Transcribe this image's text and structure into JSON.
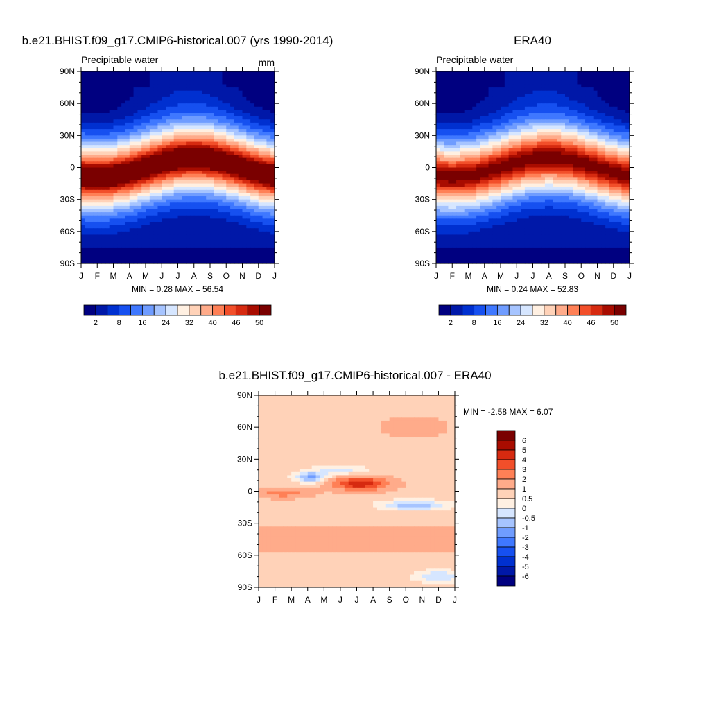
{
  "panels": [
    {
      "id": "model",
      "title": "b.e21.BHIST.f09_g17.CMIP6-historical.007 (yrs 1990-2014)",
      "left_label": "Precipitable water",
      "right_label": "mm",
      "stats": "MIN =   0.28 MAX =   56.54"
    },
    {
      "id": "era",
      "title": "ERA40",
      "left_label": "Precipitable water",
      "right_label": "",
      "stats": "MIN =   0.24 MAX =   52.83"
    },
    {
      "id": "diff",
      "title": "b.e21.BHIST.f09_g17.CMIP6-historical.007 - ERA40",
      "left_label": "",
      "right_label": "",
      "stats": "MIN =  -2.58 MAX =   6.07"
    }
  ],
  "chart_data": [
    {
      "type": "heatmap",
      "title": "b.e21.BHIST.f09_g17.CMIP6-historical.007 (yrs 1990-2014)",
      "left_label": "Precipitable water",
      "units": "mm",
      "x_tick_labels": [
        "J",
        "F",
        "M",
        "A",
        "M",
        "J",
        "J",
        "A",
        "S",
        "O",
        "N",
        "D",
        "J"
      ],
      "y_tick_labels": [
        "90N",
        "60N",
        "30N",
        "0",
        "30S",
        "60S",
        "90S"
      ],
      "ylim": [
        -90,
        90
      ],
      "min": 0.28,
      "max": 56.54,
      "colorbar_levels": [
        2,
        5,
        8,
        12,
        16,
        20,
        24,
        28,
        32,
        36,
        40,
        43,
        46,
        48,
        50
      ],
      "colorbar_labels": [
        "2",
        "8",
        "16",
        "24",
        "32",
        "40",
        "46",
        "50"
      ]
    },
    {
      "type": "heatmap",
      "title": "ERA40",
      "left_label": "Precipitable water",
      "x_tick_labels": [
        "J",
        "F",
        "M",
        "A",
        "M",
        "J",
        "J",
        "A",
        "S",
        "O",
        "N",
        "D",
        "J"
      ],
      "y_tick_labels": [
        "90N",
        "60N",
        "30N",
        "0",
        "30S",
        "60S",
        "90S"
      ],
      "ylim": [
        -90,
        90
      ],
      "min": 0.24,
      "max": 52.83,
      "colorbar_levels": [
        2,
        5,
        8,
        12,
        16,
        20,
        24,
        28,
        32,
        36,
        40,
        43,
        46,
        48,
        50
      ],
      "colorbar_labels": [
        "2",
        "8",
        "16",
        "24",
        "32",
        "40",
        "46",
        "50"
      ]
    },
    {
      "type": "heatmap",
      "title": "b.e21.BHIST.f09_g17.CMIP6-historical.007 - ERA40",
      "x_tick_labels": [
        "J",
        "F",
        "M",
        "A",
        "M",
        "J",
        "J",
        "A",
        "S",
        "O",
        "N",
        "D",
        "J"
      ],
      "y_tick_labels": [
        "90N",
        "60N",
        "30N",
        "0",
        "30S",
        "60S",
        "90S"
      ],
      "ylim": [
        -90,
        90
      ],
      "min": -2.58,
      "max": 6.07,
      "colorbar_levels": [
        6,
        5,
        4,
        3,
        2,
        1,
        0.5,
        0,
        -0.5,
        -1,
        -2,
        -3,
        -4,
        -5,
        -6
      ],
      "colorbar_labels": [
        "6",
        "5",
        "4",
        "3",
        "2",
        "1",
        "0.5",
        "0",
        "-0.5",
        "-1",
        "-2",
        "-3",
        "-4",
        "-5",
        "-6"
      ]
    }
  ],
  "palettes": {
    "blue_red_16": [
      "#000080",
      "#0018a8",
      "#0030d0",
      "#1650f0",
      "#3f78ff",
      "#6f9cff",
      "#a6c4ff",
      "#d6e6ff",
      "#fff0e2",
      "#ffd2b8",
      "#ffab8a",
      "#ff8056",
      "#f24f2a",
      "#d62a10",
      "#a80c00",
      "#7a0000"
    ],
    "diff_16": [
      "#7a0000",
      "#a80c00",
      "#d62a10",
      "#f24f2a",
      "#ff8056",
      "#ffab8a",
      "#ffd2b8",
      "#fff0e2",
      "#d6e6ff",
      "#a6c4ff",
      "#6f9cff",
      "#3f78ff",
      "#1650f0",
      "#0030d0",
      "#0018a8",
      "#000080"
    ]
  }
}
